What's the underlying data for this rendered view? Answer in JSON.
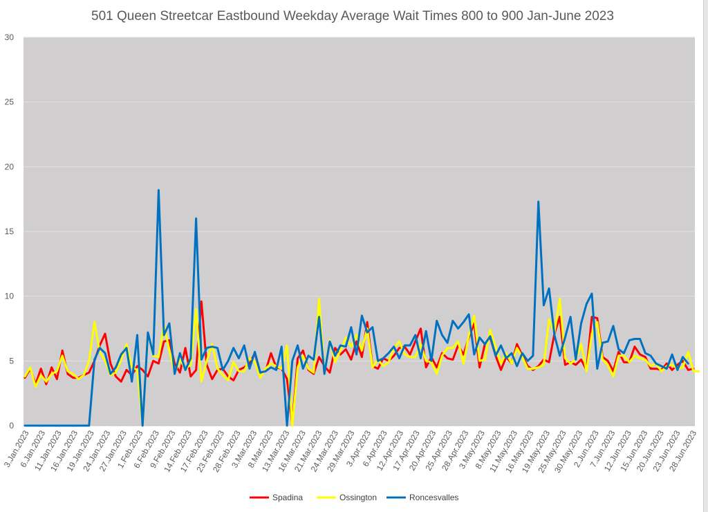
{
  "chart_data": {
    "type": "line",
    "title": "501 Queen Streetcar Eastbound Weekday Average Wait Times 800 to 900 Jan-June 2023",
    "xlabel": "",
    "ylabel": "",
    "ylim": [
      0,
      30
    ],
    "yticks": [
      0,
      5,
      10,
      15,
      20,
      25,
      30
    ],
    "grid": true,
    "legend": "bottom",
    "x_tick_labels": [
      "3.Jan.2023",
      "6.Jan.2023",
      "11.Jan.2023",
      "16.Jan.2023",
      "19.Jan.2023",
      "24.Jan.2023",
      "27.Jan.2023",
      "1.Feb.2023",
      "6.Feb.2023",
      "9.Feb.2023",
      "14.Feb.2023",
      "17.Feb.2023",
      "23.Feb.2023",
      "28.Feb.2023",
      "3.Mar.2023",
      "8.Mar.2023",
      "13.Mar.2023",
      "16.Mar.2023",
      "21.Mar.2023",
      "24.Mar.2023",
      "29.Mar.2023",
      "3.Apr.2023",
      "6.Apr.2023",
      "12.Apr.2023",
      "17.Apr.2023",
      "20.Apr.2023",
      "25.Apr.2023",
      "28.Apr.2023",
      "3.May.2023",
      "8.May.2023",
      "11.May.2023",
      "16.May.2023",
      "19.May.2023",
      "25.May.2023",
      "30.May.2023",
      "2.Jun.2023",
      "7.Jun.2023",
      "12.Jun.2023",
      "15.Jun.2023",
      "20.Jun.2023",
      "23.Jun.2023",
      "28.Jun.2023"
    ],
    "series": [
      {
        "name": "Spadina",
        "color": "#ff0000",
        "values": [
          3.7,
          4.4,
          3.2,
          4.4,
          3.2,
          4.5,
          3.6,
          5.8,
          4.0,
          3.7,
          3.7,
          3.9,
          4.1,
          5.0,
          6.2,
          7.1,
          4.8,
          3.8,
          3.4,
          4.3,
          3.9,
          4.6,
          4.3,
          3.8,
          5.0,
          4.8,
          6.5,
          6.6,
          4.8,
          4.1,
          6.0,
          3.8,
          4.3,
          9.6,
          4.7,
          3.6,
          4.3,
          4.4,
          3.8,
          3.5,
          4.3,
          4.5,
          4.8,
          5.6,
          4.1,
          4.2,
          5.6,
          4.5,
          4.4,
          3.6,
          0.1,
          5.2,
          5.8,
          4.3,
          4.0,
          5.3,
          4.6,
          4.1,
          6.0,
          5.5,
          5.9,
          5.1,
          6.5,
          5.3,
          8.0,
          4.6,
          4.4,
          5.2,
          5.0,
          5.4,
          6.0,
          6.1,
          5.5,
          6.5,
          7.5,
          4.5,
          5.3,
          4.5,
          5.6,
          5.2,
          5.1,
          6.2,
          5.5,
          6.8,
          7.9,
          4.5,
          6.3,
          6.8,
          5.4,
          4.3,
          5.3,
          4.8,
          6.3,
          5.4,
          4.6,
          4.3,
          4.6,
          5.1,
          4.9,
          7.1,
          8.4,
          4.7,
          4.9,
          4.7,
          5.1,
          4.3,
          8.4,
          8.3,
          5.3,
          5.0,
          4.2,
          5.7,
          4.9,
          4.9,
          6.1,
          5.5,
          5.3,
          4.4,
          4.4,
          4.3,
          4.8,
          4.3,
          4.7,
          5.0,
          4.3,
          4.4
        ]
      },
      {
        "name": "Ossington",
        "color": "#ffff00",
        "values": [
          3.8,
          4.5,
          3.0,
          3.9,
          3.4,
          4.0,
          4.2,
          5.4,
          4.2,
          4.0,
          3.6,
          3.9,
          5.0,
          8.0,
          5.7,
          5.0,
          3.9,
          4.1,
          5.1,
          6.3,
          4.5,
          4.3,
          0.0,
          7.2,
          5.4,
          5.3,
          7.8,
          5.8,
          4.1,
          5.1,
          4.4,
          4.7,
          9.0,
          3.4,
          5.0,
          6.3,
          4.4,
          3.9,
          3.5,
          4.9,
          4.2,
          4.2,
          5.2,
          4.9,
          3.7,
          4.4,
          4.8,
          4.6,
          4.4,
          6.2,
          0.0,
          4.5,
          5.4,
          4.4,
          4.1,
          9.8,
          4.0,
          6.6,
          4.9,
          5.8,
          6.8,
          6.1,
          7.0,
          5.8,
          7.5,
          4.5,
          5.1,
          4.6,
          4.9,
          6.0,
          6.5,
          5.5,
          5.3,
          5.3,
          6.3,
          5.0,
          4.9,
          4.0,
          5.4,
          6.0,
          6.0,
          6.5,
          4.8,
          7.0,
          8.5,
          5.0,
          5.1,
          7.4,
          6.1,
          4.8,
          5.6,
          4.8,
          6.0,
          5.3,
          4.4,
          4.4,
          4.5,
          4.7,
          8.2,
          7.2,
          9.8,
          5.2,
          4.8,
          5.1,
          6.3,
          4.2,
          7.1,
          8.0,
          5.1,
          4.7,
          3.8,
          5.4,
          5.4,
          4.9,
          5.4,
          5.2,
          5.1,
          4.6,
          4.8,
          4.2,
          4.6,
          4.7,
          4.4,
          4.5,
          5.7,
          4.2,
          4.2
        ]
      },
      {
        "name": "Roncesvalles",
        "color": "#0070c0",
        "values": [
          0,
          0,
          0,
          0,
          0,
          0,
          0,
          0,
          0,
          0,
          0,
          0,
          0,
          5.1,
          6.0,
          5.6,
          4.0,
          4.5,
          5.5,
          6.0,
          3.4,
          7.0,
          0.0,
          7.2,
          5.5,
          18.2,
          7.0,
          7.9,
          4.0,
          5.6,
          4.3,
          5.2,
          16.0,
          5.1,
          6.0,
          6.1,
          6.0,
          4.3,
          5.0,
          6.0,
          5.2,
          6.2,
          4.4,
          5.7,
          4.1,
          4.2,
          4.5,
          4.3,
          6.1,
          0.0,
          5.0,
          6.2,
          4.4,
          5.4,
          5.1,
          8.4,
          4.0,
          6.5,
          5.4,
          6.2,
          6.1,
          7.6,
          5.5,
          8.5,
          7.2,
          7.6,
          5.0,
          5.2,
          5.6,
          6.1,
          5.2,
          6.2,
          6.2,
          7.0,
          5.2,
          7.3,
          5.0,
          8.1,
          7.0,
          6.4,
          8.1,
          7.5,
          8.0,
          8.6,
          5.5,
          6.8,
          6.3,
          6.9,
          5.4,
          6.2,
          5.2,
          5.6,
          4.6,
          5.6,
          5.0,
          5.4,
          17.3,
          9.3,
          10.6,
          7.0,
          5.4,
          6.8,
          8.4,
          5.1,
          7.9,
          9.4,
          10.2,
          4.4,
          6.4,
          6.5,
          7.7,
          5.9,
          5.6,
          6.6,
          6.7,
          6.7,
          5.6,
          5.4,
          4.8,
          4.6,
          4.4,
          5.5,
          4.3,
          5.3,
          4.8
        ]
      }
    ]
  }
}
